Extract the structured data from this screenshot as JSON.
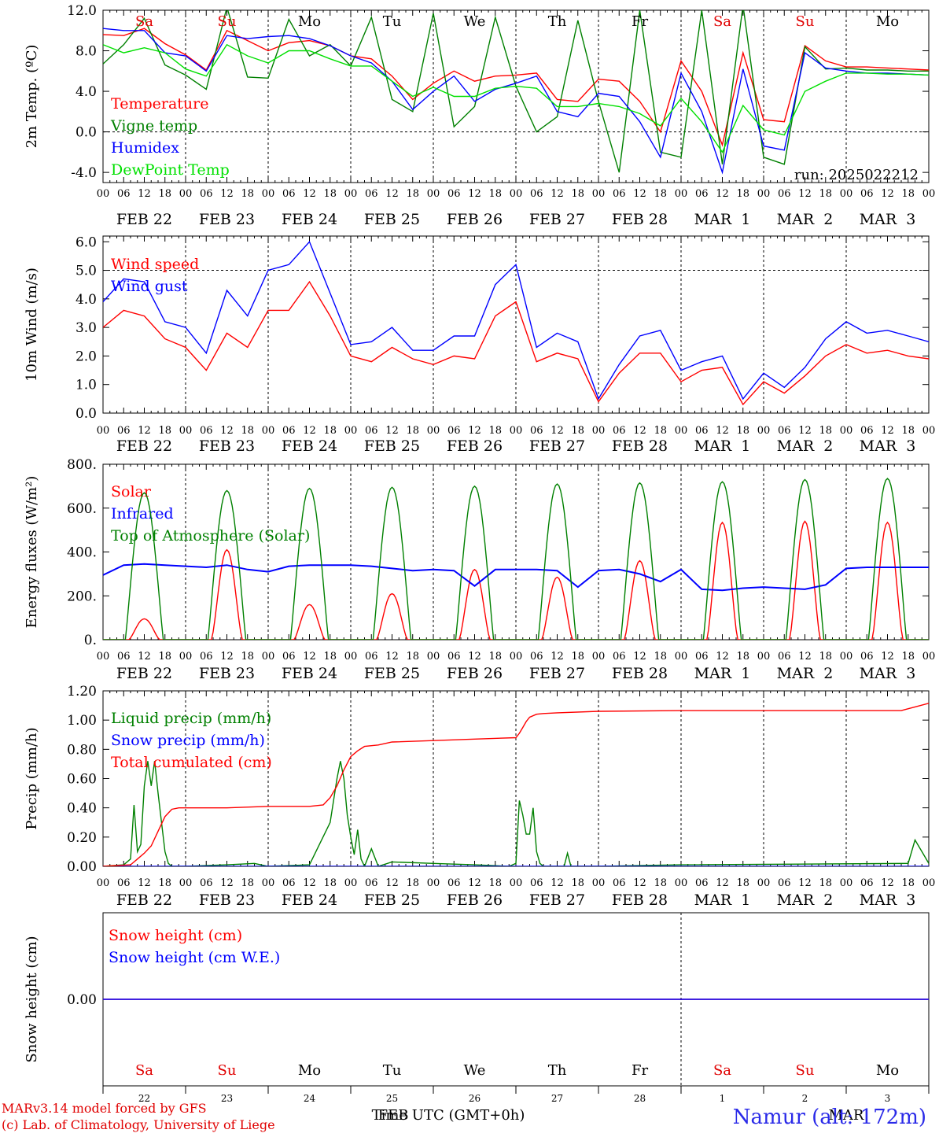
{
  "footer": {
    "model_line": "MARv3.14 model forced by GFS",
    "credit_line": "(c) Lab. of Climatology, University of Liege",
    "x_axis_title": "Time UTC (GMT+0h)",
    "x_axis_overprint": "FEB",
    "x_axis_overprint_2": "MAR",
    "station": "Namur (alt: 172m)"
  },
  "timeline": {
    "hour_ticks": [
      "00",
      "06",
      "12",
      "18"
    ],
    "end_tick": "00",
    "dates": [
      "FEB 22",
      "FEB 23",
      "FEB 24",
      "FEB 25",
      "FEB 26",
      "FEB 27",
      "FEB 28",
      "MAR  1",
      "MAR  2",
      "MAR  3"
    ],
    "weekdays": [
      "Sa",
      "Su",
      "Mo",
      "Tu",
      "We",
      "Th",
      "Fr",
      "Sa",
      "Su",
      "Mo"
    ],
    "weekday_colors": [
      "#e00000",
      "#e00000",
      "#000000",
      "#000000",
      "#000000",
      "#000000",
      "#000000",
      "#e00000",
      "#e00000",
      "#000000"
    ],
    "day_numbers": [
      "22",
      "23",
      "24",
      "25",
      "26",
      "27",
      "28",
      "1",
      "2",
      "3"
    ]
  },
  "chart_data": [
    {
      "type": "line",
      "ylabel": "2m Temp. (ºC)",
      "ylim": [
        -5.0,
        12.0
      ],
      "yticks": [
        "12.0",
        "8.0",
        "4.0",
        "0.0",
        "-4.0"
      ],
      "ytick_values": [
        12,
        8,
        4,
        0,
        -4
      ],
      "dashed_reference": 0.0,
      "annotation": "run: 2025022212",
      "x_unit": "hours since FEB 22 00 UTC",
      "series": [
        {
          "name": "Temperature",
          "color": "#ff0000",
          "x": [
            0,
            6,
            12,
            18,
            24,
            30,
            36,
            42,
            48,
            54,
            60,
            66,
            72,
            78,
            84,
            90,
            96,
            102,
            108,
            114,
            120,
            126,
            132,
            138,
            144,
            150,
            156,
            162,
            168,
            174,
            180,
            186,
            192,
            198,
            204,
            210,
            216,
            222,
            228,
            234,
            240
          ],
          "values": [
            9.6,
            9.5,
            10.2,
            8.7,
            7.6,
            6.1,
            10.0,
            9.0,
            8.0,
            8.8,
            9.0,
            8.5,
            7.5,
            7.2,
            5.5,
            3.2,
            4.8,
            6.0,
            5.0,
            5.5,
            5.6,
            5.8,
            3.2,
            3.0,
            5.2,
            5.0,
            3.0,
            0.0,
            7.0,
            4.0,
            -1.3,
            7.8,
            1.2,
            1.0,
            8.5,
            7.0,
            6.4,
            6.4,
            6.3,
            6.2,
            6.1
          ]
        },
        {
          "name": "Vigne temp",
          "color": "#008000",
          "x": [
            0,
            6,
            12,
            18,
            24,
            30,
            36,
            42,
            48,
            54,
            60,
            66,
            72,
            78,
            84,
            90,
            96,
            102,
            108,
            114,
            120,
            126,
            132,
            138,
            144,
            150,
            156,
            162,
            168,
            174,
            180,
            186,
            192,
            198,
            204,
            210,
            216,
            222,
            228,
            234,
            240
          ],
          "values": [
            6.7,
            8.6,
            11.2,
            6.6,
            5.6,
            4.2,
            12.3,
            5.4,
            5.3,
            11.1,
            7.5,
            8.6,
            6.5,
            11.3,
            3.2,
            2.0,
            11.7,
            0.5,
            2.5,
            11.3,
            4.5,
            0.0,
            1.5,
            11.0,
            3.0,
            -4.0,
            12.0,
            -2.0,
            -2.5,
            12.0,
            -3.2,
            12.5,
            -2.5,
            -3.2,
            8.4,
            6.2,
            6.3,
            6.1,
            6.1,
            6.0,
            6.0
          ]
        },
        {
          "name": "Humidex",
          "color": "#0000ff",
          "x": [
            0,
            6,
            12,
            18,
            24,
            30,
            36,
            42,
            48,
            54,
            60,
            66,
            72,
            78,
            84,
            90,
            96,
            102,
            108,
            114,
            120,
            126,
            132,
            138,
            144,
            150,
            156,
            162,
            168,
            174,
            180,
            186,
            192,
            198,
            204,
            210,
            216,
            222,
            228,
            234,
            240
          ],
          "values": [
            10.2,
            10.0,
            10.0,
            7.8,
            7.5,
            6.0,
            9.5,
            9.2,
            9.4,
            9.5,
            9.2,
            8.5,
            7.5,
            6.8,
            5.0,
            2.2,
            4.0,
            5.5,
            3.0,
            4.2,
            4.8,
            5.5,
            2.0,
            1.5,
            3.8,
            3.5,
            1.0,
            -2.5,
            5.8,
            2.0,
            -4.0,
            6.2,
            -1.4,
            -1.8,
            7.8,
            6.3,
            6.0,
            5.8,
            5.8,
            5.7,
            5.6
          ]
        },
        {
          "name": "DewPoint Temp",
          "color": "#00e000",
          "x": [
            0,
            6,
            12,
            18,
            24,
            30,
            36,
            42,
            48,
            54,
            60,
            66,
            72,
            78,
            84,
            90,
            96,
            102,
            108,
            114,
            120,
            126,
            132,
            138,
            144,
            150,
            156,
            162,
            168,
            174,
            180,
            186,
            192,
            198,
            204,
            210,
            216,
            222,
            228,
            234,
            240
          ],
          "values": [
            8.6,
            7.8,
            8.3,
            7.8,
            6.2,
            5.5,
            8.6,
            7.5,
            6.8,
            8.0,
            8.0,
            7.2,
            6.5,
            6.5,
            5.0,
            3.5,
            4.4,
            3.5,
            3.5,
            4.3,
            4.5,
            4.3,
            2.5,
            2.5,
            2.8,
            2.5,
            1.8,
            0.6,
            3.3,
            1.0,
            -2.0,
            2.6,
            0.2,
            -0.3,
            4.0,
            5.0,
            5.8,
            5.8,
            5.7,
            5.7,
            5.6
          ]
        }
      ]
    },
    {
      "type": "line",
      "ylabel": "10m Wind (m/s)",
      "ylim": [
        0.0,
        6.2
      ],
      "yticks": [
        "6.0",
        "5.0",
        "4.0",
        "3.0",
        "2.0",
        "1.0",
        "0.0"
      ],
      "ytick_values": [
        6,
        5,
        4,
        3,
        2,
        1,
        0
      ],
      "dashed_reference": 5.0,
      "x_unit": "hours since FEB 22 00 UTC",
      "series": [
        {
          "name": "Wind speed",
          "color": "#ff0000",
          "x": [
            0,
            6,
            12,
            18,
            24,
            30,
            36,
            42,
            48,
            54,
            60,
            66,
            72,
            78,
            84,
            90,
            96,
            102,
            108,
            114,
            120,
            126,
            132,
            138,
            144,
            150,
            156,
            162,
            168,
            174,
            180,
            186,
            192,
            198,
            204,
            210,
            216,
            222,
            228,
            234,
            240
          ],
          "values": [
            3.0,
            3.6,
            3.4,
            2.6,
            2.3,
            1.5,
            2.8,
            2.3,
            3.6,
            3.6,
            4.6,
            3.4,
            2.0,
            1.8,
            2.3,
            1.9,
            1.7,
            2.0,
            1.9,
            3.4,
            3.9,
            1.8,
            2.1,
            1.9,
            0.4,
            1.4,
            2.1,
            2.1,
            1.1,
            1.5,
            1.6,
            0.3,
            1.1,
            0.7,
            1.3,
            2.0,
            2.4,
            2.1,
            2.2,
            2.0,
            1.9
          ]
        },
        {
          "name": "Wind gust",
          "color": "#0000ff",
          "x": [
            0,
            6,
            12,
            18,
            24,
            30,
            36,
            42,
            48,
            54,
            60,
            66,
            72,
            78,
            84,
            90,
            96,
            102,
            108,
            114,
            120,
            126,
            132,
            138,
            144,
            150,
            156,
            162,
            168,
            174,
            180,
            186,
            192,
            198,
            204,
            210,
            216,
            222,
            228,
            234,
            240
          ],
          "values": [
            3.9,
            4.7,
            4.6,
            3.2,
            3.0,
            2.1,
            4.3,
            3.4,
            5.0,
            5.2,
            6.0,
            4.2,
            2.4,
            2.5,
            3.0,
            2.2,
            2.2,
            2.7,
            2.7,
            4.5,
            5.2,
            2.3,
            2.8,
            2.5,
            0.5,
            1.7,
            2.7,
            2.9,
            1.5,
            1.8,
            2.0,
            0.5,
            1.4,
            0.9,
            1.6,
            2.6,
            3.2,
            2.8,
            2.9,
            2.7,
            2.5
          ]
        }
      ]
    },
    {
      "type": "line",
      "ylabel": "Energy fluxes (W/m²)",
      "ylim": [
        0,
        800
      ],
      "yticks": [
        "800.",
        "600.",
        "400.",
        "200.",
        "0."
      ],
      "ytick_values": [
        800,
        600,
        400,
        200,
        0
      ],
      "x_unit": "hours since FEB 22 00 UTC",
      "series": [
        {
          "name": "Solar",
          "color": "#ff0000",
          "daily_peaks": [
            95,
            410,
            160,
            210,
            320,
            285,
            360,
            535,
            540,
            535
          ]
        },
        {
          "name": "Infrared",
          "color": "#0000ff",
          "x": [
            0,
            6,
            12,
            18,
            24,
            30,
            36,
            42,
            48,
            54,
            60,
            66,
            72,
            78,
            84,
            90,
            96,
            102,
            108,
            114,
            120,
            126,
            132,
            138,
            144,
            150,
            156,
            162,
            168,
            174,
            180,
            186,
            192,
            198,
            204,
            210,
            216,
            222,
            228,
            234,
            240
          ],
          "values": [
            295,
            340,
            345,
            340,
            335,
            330,
            340,
            320,
            310,
            335,
            340,
            340,
            340,
            335,
            325,
            315,
            320,
            315,
            245,
            320,
            320,
            320,
            315,
            240,
            315,
            320,
            300,
            265,
            320,
            230,
            225,
            235,
            240,
            235,
            230,
            250,
            325,
            330,
            330,
            330,
            330
          ]
        },
        {
          "name": "Top of Atmosphere (Solar)",
          "color": "#008000",
          "daily_peaks": [
            670,
            680,
            690,
            695,
            700,
            710,
            715,
            720,
            730,
            735
          ]
        }
      ]
    },
    {
      "type": "line",
      "ylabel": "Precip (mm/h)",
      "ylim": [
        0.0,
        1.2
      ],
      "yticks": [
        "1.20",
        "1.00",
        "0.80",
        "0.60",
        "0.40",
        "0.20",
        "0.00"
      ],
      "ytick_values": [
        1.2,
        1.0,
        0.8,
        0.6,
        0.4,
        0.2,
        0.0
      ],
      "x_unit": "hours since FEB 22 00 UTC",
      "series": [
        {
          "name": "Liquid precip (mm/h)",
          "color": "#008000",
          "x": [
            0,
            6,
            8,
            9,
            10,
            11,
            12,
            13,
            14,
            15,
            16,
            17,
            18,
            19,
            20,
            24,
            36,
            44,
            48,
            60,
            66,
            68,
            69,
            70,
            71,
            72,
            73,
            74,
            75,
            76,
            78,
            80,
            84,
            96,
            108,
            118,
            120,
            121,
            122,
            123,
            124,
            125,
            126,
            127,
            128,
            130,
            134,
            135,
            136,
            138,
            144,
            168,
            234,
            236,
            238,
            240
          ],
          "values": [
            0.0,
            0.01,
            0.05,
            0.42,
            0.1,
            0.15,
            0.55,
            0.72,
            0.55,
            0.72,
            0.5,
            0.3,
            0.1,
            0.02,
            0.0,
            0.0,
            0.01,
            0.02,
            0.0,
            0.01,
            0.3,
            0.6,
            0.72,
            0.6,
            0.35,
            0.2,
            0.08,
            0.25,
            0.05,
            0.0,
            0.12,
            0.0,
            0.03,
            0.02,
            0.01,
            0.0,
            0.02,
            0.45,
            0.35,
            0.22,
            0.22,
            0.4,
            0.1,
            0.02,
            0.0,
            0.0,
            0.0,
            0.09,
            0.0,
            0.0,
            0.0,
            0.01,
            0.02,
            0.18,
            0.1,
            0.02
          ]
        },
        {
          "name": "Snow precip (mm/h)",
          "color": "#0000ff",
          "x": [
            0,
            240
          ],
          "values": [
            0.0,
            0.0
          ]
        },
        {
          "name": "Total cumulated (cm)",
          "color": "#ff0000",
          "x": [
            0,
            8,
            10,
            12,
            14,
            16,
            18,
            20,
            22,
            24,
            36,
            48,
            60,
            64,
            66,
            68,
            70,
            72,
            74,
            76,
            80,
            84,
            96,
            108,
            120,
            121,
            122,
            123,
            124,
            126,
            128,
            132,
            144,
            168,
            192,
            216,
            232,
            236,
            240
          ],
          "values": [
            0.0,
            0.01,
            0.05,
            0.09,
            0.14,
            0.24,
            0.34,
            0.39,
            0.4,
            0.4,
            0.4,
            0.41,
            0.41,
            0.42,
            0.47,
            0.55,
            0.66,
            0.75,
            0.79,
            0.82,
            0.83,
            0.85,
            0.86,
            0.87,
            0.88,
            0.91,
            0.95,
            0.99,
            1.02,
            1.04,
            1.045,
            1.05,
            1.06,
            1.065,
            1.065,
            1.065,
            1.065,
            1.09,
            1.115
          ]
        }
      ]
    },
    {
      "type": "line",
      "ylabel": "Snow height (cm)",
      "ylim": [
        -1.0,
        1.0
      ],
      "yticks": [
        "0.00"
      ],
      "ytick_values": [
        0.0
      ],
      "x_unit": "hours since FEB 22 00 UTC",
      "series": [
        {
          "name": "Snow height (cm)",
          "color": "#ff0000",
          "x": [
            0,
            240
          ],
          "values": [
            0.0,
            0.0
          ]
        },
        {
          "name": "Snow height (cm W.E.)",
          "color": "#0000ff",
          "x": [
            0,
            240
          ],
          "values": [
            0.0,
            0.0
          ]
        }
      ]
    }
  ]
}
